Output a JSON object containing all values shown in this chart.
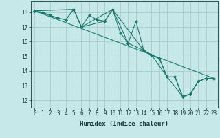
{
  "xlabel": "Humidex (Indice chaleur)",
  "xlim": [
    -0.5,
    23.5
  ],
  "ylim": [
    11.5,
    18.75
  ],
  "xticks": [
    0,
    1,
    2,
    3,
    4,
    5,
    6,
    7,
    8,
    9,
    10,
    11,
    12,
    13,
    14,
    15,
    16,
    17,
    18,
    19,
    20,
    21,
    22,
    23
  ],
  "yticks": [
    12,
    13,
    14,
    15,
    16,
    17,
    18
  ],
  "bg_color": "#c6e8e8",
  "grid_color": "#a8cccc",
  "line_color": "#1a7a6e",
  "line1_x": [
    0,
    1,
    2,
    3,
    4,
    5,
    6,
    7,
    8,
    9,
    10,
    11,
    12,
    13,
    14,
    15,
    16,
    17,
    18,
    19,
    20,
    21,
    22,
    23
  ],
  "line1_y": [
    18.1,
    18.0,
    17.8,
    17.6,
    17.5,
    18.2,
    17.0,
    17.8,
    17.5,
    17.4,
    18.2,
    16.6,
    15.9,
    17.4,
    15.4,
    15.1,
    14.85,
    13.6,
    13.6,
    12.25,
    12.45,
    13.3,
    13.5,
    13.5
  ],
  "line2_x": [
    0,
    2,
    3,
    4,
    5,
    6,
    9,
    10,
    12,
    14,
    15,
    16,
    17,
    18,
    19,
    20,
    21,
    22,
    23
  ],
  "line2_y": [
    18.1,
    17.8,
    17.6,
    17.5,
    18.2,
    17.0,
    17.4,
    18.2,
    15.9,
    15.4,
    15.1,
    14.85,
    13.6,
    13.6,
    12.25,
    12.45,
    13.3,
    13.5,
    13.5
  ],
  "line3_x": [
    0,
    5,
    6,
    10,
    14,
    15,
    17,
    19,
    20,
    21,
    22,
    23
  ],
  "line3_y": [
    18.1,
    18.2,
    17.0,
    18.2,
    15.4,
    15.1,
    13.6,
    12.25,
    12.45,
    13.3,
    13.5,
    13.5
  ],
  "line4_x": [
    0,
    23
  ],
  "line4_y": [
    18.1,
    13.5
  ]
}
